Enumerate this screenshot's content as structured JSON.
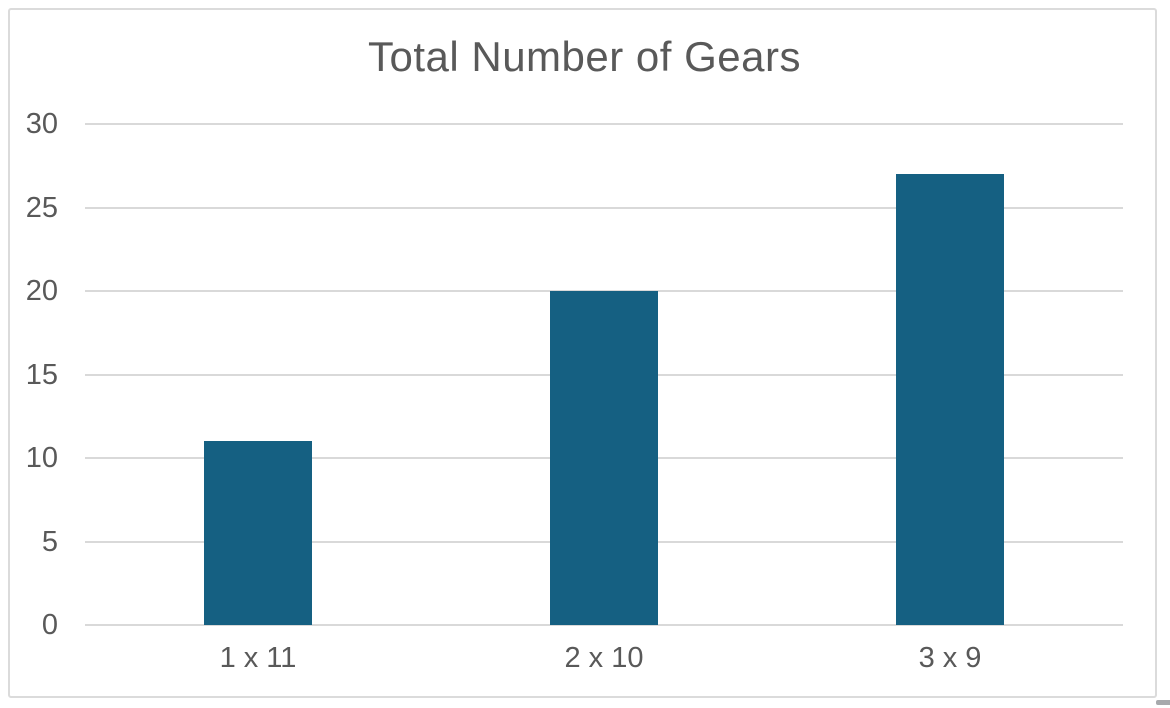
{
  "chart_data": {
    "type": "bar",
    "title": "Total Number of Gears",
    "categories": [
      "1 x 11",
      "2 x 10",
      "3 x 9"
    ],
    "values": [
      11,
      20,
      27
    ],
    "xlabel": "",
    "ylabel": "",
    "ylim": [
      0,
      30
    ],
    "ytick_step": 5,
    "grid": true,
    "legend": "none",
    "colors": {
      "bar": "#156082",
      "title_text": "#595959",
      "tick_text": "#595959",
      "gridline": "#d9d9d9",
      "frame_border": "#dbdbdb",
      "background": "#ffffff"
    }
  }
}
